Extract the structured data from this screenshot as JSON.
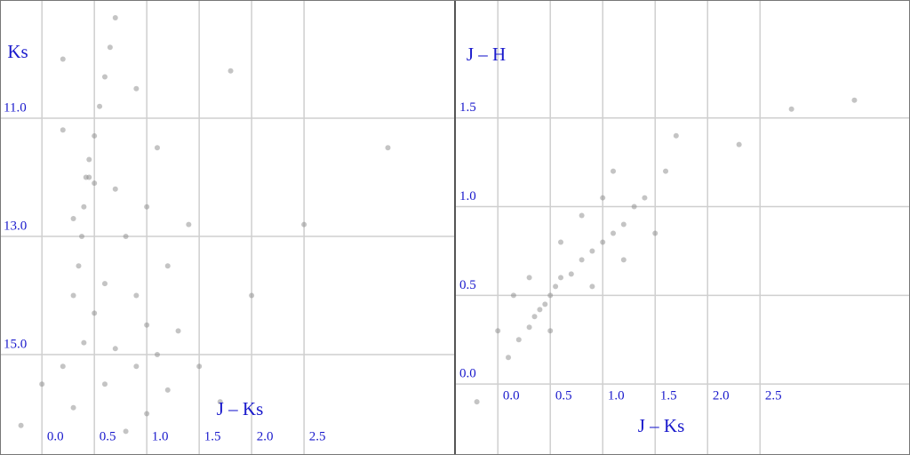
{
  "chart_data": [
    {
      "type": "scatter",
      "x_label": "J – Ks",
      "y_label": "Ks",
      "color": "#8a8a8a",
      "xlim": [
        -0.4,
        3.94
      ],
      "ylim": [
        16.7,
        9.0
      ],
      "xticks": [
        {
          "value": 0,
          "label": "0.0"
        },
        0.5,
        {
          "value": 1,
          "label": "1.0"
        },
        1.5,
        {
          "value": 2,
          "label": "2.0"
        },
        2.5
      ],
      "yticks": [
        {
          "value": 11,
          "label": "11.0"
        },
        {
          "value": 13,
          "label": "13.0"
        },
        {
          "value": 15,
          "label": "15.0"
        }
      ],
      "x": [
        0.7,
        0.65,
        0.6,
        0.55,
        0.5,
        0.45,
        0.42,
        0.45,
        0.5,
        0.4,
        0.38,
        0.35,
        0.3,
        0.9,
        0.2,
        1.1,
        1.0,
        0.8,
        1.2,
        0.6,
        0.9,
        0.5,
        1.0,
        1.3,
        0.4,
        0.7,
        1.1,
        0.2,
        0.9,
        1.5,
        0.0,
        0.6,
        1.2,
        0.3,
        1.0,
        0.8,
        -0.2,
        1.7,
        2.0,
        2.5,
        3.3,
        1.8,
        0.3,
        0.2,
        1.4,
        0.7
      ],
      "y": [
        9.3,
        9.8,
        10.3,
        10.8,
        11.3,
        11.7,
        12.0,
        12.0,
        12.1,
        12.5,
        13.0,
        13.5,
        14.0,
        10.5,
        10.0,
        11.5,
        12.5,
        13.0,
        13.5,
        13.8,
        14.0,
        14.3,
        14.5,
        14.6,
        14.8,
        14.9,
        15.0,
        15.2,
        15.2,
        15.2,
        15.5,
        15.5,
        15.6,
        15.9,
        16.0,
        16.3,
        16.2,
        15.8,
        14.0,
        12.8,
        11.5,
        10.2,
        12.7,
        11.2,
        12.8,
        12.2
      ]
    },
    {
      "type": "scatter",
      "x_label": "J – Ks",
      "y_label": "J – H",
      "color": "#8a8a8a",
      "xlim": [
        -0.4,
        3.93
      ],
      "ylim": [
        -0.4,
        2.165
      ],
      "xticks": [
        {
          "value": 0,
          "label": "0.0"
        },
        0.5,
        {
          "value": 1,
          "label": "1.0"
        },
        1.5,
        {
          "value": 2,
          "label": "2.0"
        },
        2.5
      ],
      "yticks": [
        {
          "value": 0,
          "label": "0.0"
        },
        0.5,
        {
          "value": 1,
          "label": "1.0"
        },
        1.5
      ],
      "x": [
        0.45,
        0.4,
        0.5,
        0.55,
        0.35,
        0.3,
        0.2,
        0.6,
        0.7,
        0.8,
        0.9,
        1.0,
        1.1,
        1.2,
        1.3,
        1.4,
        0.9,
        1.2,
        0.6,
        1.0,
        1.5,
        0.1,
        0.0,
        0.3,
        1.6,
        2.3,
        2.8,
        0.8,
        0.5,
        1.7,
        3.4,
        -0.2,
        0.15,
        1.1
      ],
      "y": [
        0.45,
        0.42,
        0.5,
        0.55,
        0.38,
        0.32,
        0.25,
        0.6,
        0.62,
        0.7,
        0.75,
        0.8,
        0.85,
        0.9,
        1.0,
        1.05,
        0.55,
        0.7,
        0.8,
        1.05,
        0.85,
        0.15,
        0.3,
        0.6,
        1.2,
        1.35,
        1.55,
        0.95,
        0.3,
        1.4,
        1.6,
        -0.1,
        0.5,
        1.2
      ]
    }
  ]
}
